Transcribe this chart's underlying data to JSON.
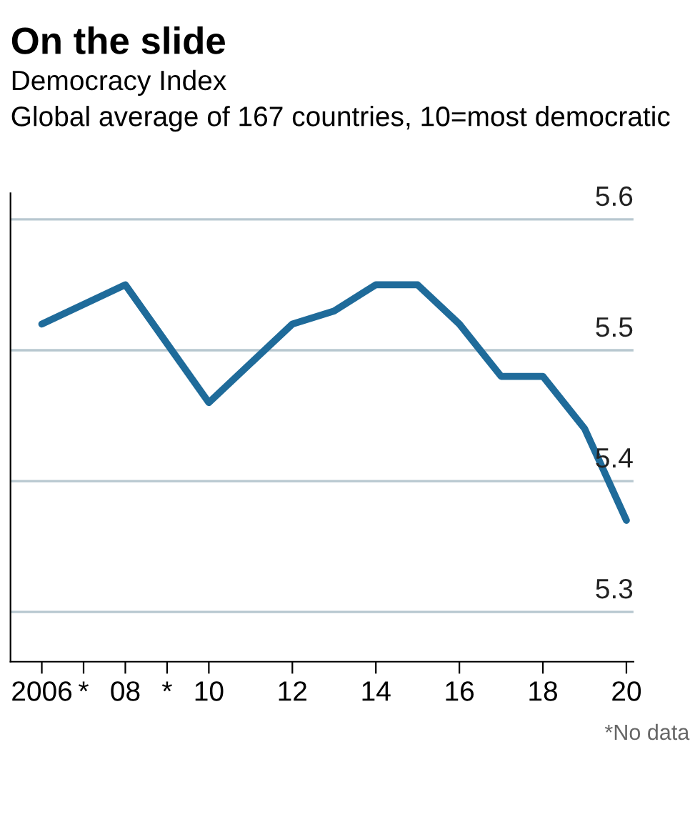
{
  "chart_data": {
    "type": "line",
    "title": "On the slide",
    "subtitle": "Democracy Index\nGlobal average of 167 countries, 10=most democratic",
    "x": [
      2006,
      2008,
      2010,
      2011,
      2012,
      2013,
      2014,
      2015,
      2016,
      2017,
      2018,
      2019,
      2020
    ],
    "series": [
      {
        "color": "#1f6b9a",
        "values": [
          5.52,
          5.55,
          5.46,
          5.49,
          5.52,
          5.53,
          5.55,
          5.55,
          5.52,
          5.48,
          5.48,
          5.44,
          5.37
        ]
      }
    ],
    "xlim": [
      2005.25,
      2020.17
    ],
    "xticks": [
      {
        "value": 2006,
        "label": "2006"
      },
      {
        "value": 2007,
        "label": "*"
      },
      {
        "value": 2008,
        "label": "08"
      },
      {
        "value": 2009,
        "label": "*"
      },
      {
        "value": 2010,
        "label": "10"
      },
      {
        "value": 2012,
        "label": "12"
      },
      {
        "value": 2014,
        "label": "14"
      },
      {
        "value": 2016,
        "label": "16"
      },
      {
        "value": 2018,
        "label": "18"
      },
      {
        "value": 2020,
        "label": "20"
      }
    ],
    "ylim": [
      5.262,
      5.62
    ],
    "yticks": [
      5.3,
      5.4,
      5.5,
      5.6
    ],
    "grid": "y",
    "marker": "none",
    "line_style": "solid",
    "annotations": [
      "*No data"
    ]
  }
}
